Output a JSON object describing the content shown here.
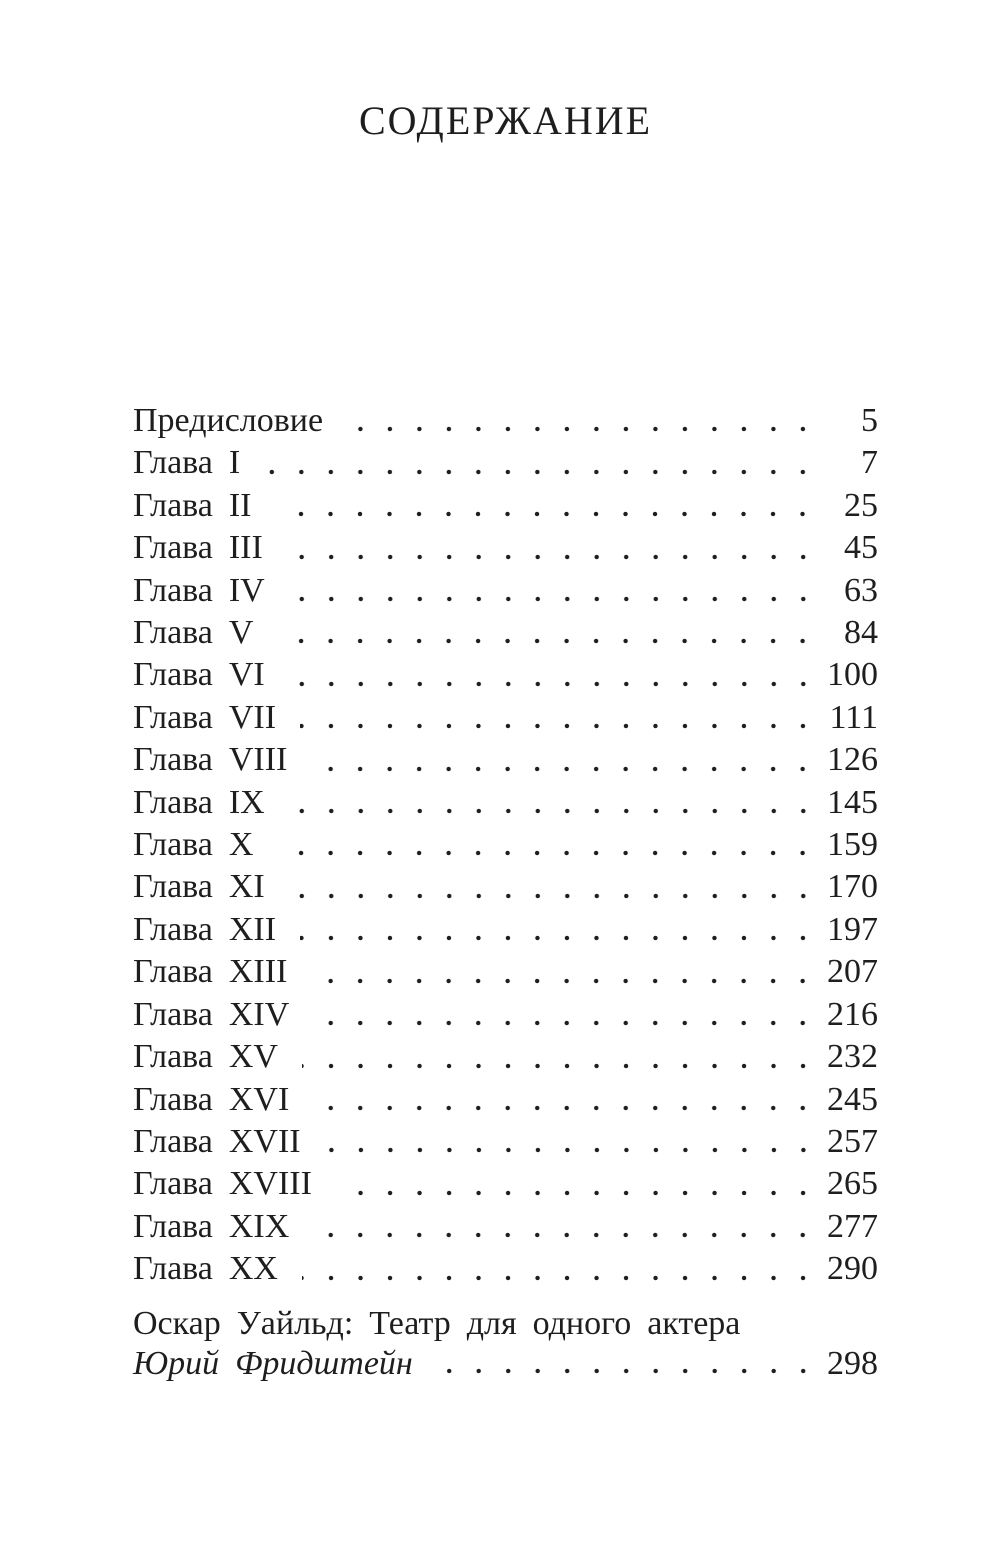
{
  "book_page": {
    "title": "СОДЕРЖАНИЕ",
    "ink_color": "#1e1e1e",
    "paper_color": "#ffffff",
    "toc": {
      "entries": [
        {
          "label": "Предисловие",
          "page": "5"
        },
        {
          "label": "Глава I",
          "page": "7"
        },
        {
          "label": "Глава II",
          "page": "25"
        },
        {
          "label": "Глава III",
          "page": "45"
        },
        {
          "label": "Глава IV",
          "page": "63"
        },
        {
          "label": "Глава V",
          "page": "84"
        },
        {
          "label": "Глава VI",
          "page": "100"
        },
        {
          "label": "Глава VII",
          "page": "111"
        },
        {
          "label": "Глава VIII",
          "page": "126"
        },
        {
          "label": "Глава IX",
          "page": "145"
        },
        {
          "label": "Глава X",
          "page": "159"
        },
        {
          "label": "Глава XI",
          "page": "170"
        },
        {
          "label": "Глава XII",
          "page": "197"
        },
        {
          "label": "Глава XIII",
          "page": "207"
        },
        {
          "label": "Глава XIV",
          "page": "216"
        },
        {
          "label": "Глава XV",
          "page": "232"
        },
        {
          "label": "Глава XVI",
          "page": "245"
        },
        {
          "label": "Глава XVII",
          "page": "257"
        },
        {
          "label": "Глава XVIII",
          "page": "265"
        },
        {
          "label": "Глава XIX",
          "page": "277"
        },
        {
          "label": "Глава XX",
          "page": "290"
        }
      ],
      "afterword": {
        "title": "Оскар Уайльд: Театр для одного актера",
        "author": "Юрий Фридштейн",
        "page": "298"
      }
    }
  }
}
